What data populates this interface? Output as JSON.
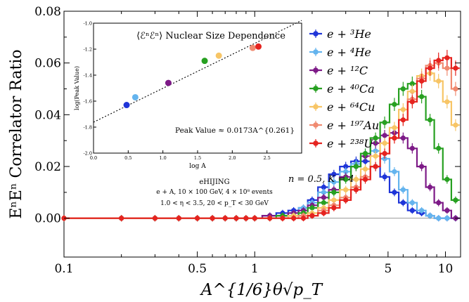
{
  "chart_data": [
    {
      "type": "line",
      "ylabel": "EⁿEⁿ Correlator Ratio",
      "xlabel": "A^{1/6}θ√p_T",
      "xscale": "log",
      "xlim": [
        0.1,
        12
      ],
      "ylim": [
        -0.015,
        0.08
      ],
      "x_ticks": [
        0.1,
        0.5,
        1,
        5,
        10
      ],
      "x_tick_labels": [
        "0.1",
        "0.5",
        "1",
        "5",
        "10"
      ],
      "y_ticks": [
        0.0,
        0.02,
        0.04,
        0.06,
        0.08
      ],
      "y_tick_labels": [
        "0.00",
        "0.02",
        "0.04",
        "0.06",
        "0.08"
      ],
      "grid": false,
      "legend_position": "top-right",
      "annotations": {
        "params": "n = 0.5,  K = 4",
        "generator": "eHIJING",
        "setup": "e + A,  10 × 100 GeV,  4 × 10⁸ events",
        "cuts": "1.0 < η < 3.5,  20 < p_T < 30 GeV"
      },
      "x": [
        0.1,
        0.2,
        0.3,
        0.4,
        0.5,
        0.6,
        0.7,
        0.8,
        0.9,
        1.0,
        1.2,
        1.4,
        1.6,
        1.8,
        2.0,
        2.3,
        2.6,
        3.0,
        3.4,
        3.8,
        4.3,
        4.8,
        5.4,
        6.0,
        6.7,
        7.5,
        8.3,
        9.2,
        10.2,
        11.3
      ],
      "series": [
        {
          "name": "e + ³He",
          "color": "#1f35d8",
          "values": [
            0,
            0,
            0,
            0,
            0,
            0,
            0,
            0,
            0,
            0,
            0.001,
            0.002,
            0.003,
            0.004,
            0.007,
            0.012,
            0.017,
            0.02,
            0.022,
            0.022,
            0.02,
            0.016,
            0.01,
            0.006,
            0.003,
            0.002,
            0.001,
            0,
            0,
            0
          ]
        },
        {
          "name": "e + ⁴He",
          "color": "#64b4ee",
          "values": [
            0,
            0,
            0,
            0,
            0,
            0,
            0,
            0,
            0,
            0,
            0.001,
            0.001,
            0.002,
            0.004,
            0.006,
            0.01,
            0.014,
            0.018,
            0.021,
            0.025,
            0.026,
            0.023,
            0.018,
            0.011,
            0.006,
            0.003,
            0.001,
            0,
            0,
            0
          ]
        },
        {
          "name": "e + ¹²C",
          "color": "#7d1a87",
          "values": [
            0,
            0,
            0,
            0,
            0,
            0,
            0,
            0,
            0,
            0,
            0.001,
            0.001,
            0.002,
            0.003,
            0.005,
            0.008,
            0.011,
            0.016,
            0.02,
            0.024,
            0.029,
            0.032,
            0.033,
            0.031,
            0.027,
            0.02,
            0.012,
            0.006,
            0.003,
            0
          ]
        },
        {
          "name": "e + ⁴⁰Ca",
          "color": "#27a021",
          "values": [
            0,
            0,
            0,
            0,
            0,
            0,
            0,
            0,
            0,
            0,
            0,
            0.001,
            0.001,
            0.002,
            0.004,
            0.006,
            0.01,
            0.015,
            0.02,
            0.025,
            0.031,
            0.037,
            0.044,
            0.05,
            0.052,
            0.047,
            0.038,
            0.027,
            0.015,
            0.007
          ]
        },
        {
          "name": "e + ⁶⁴Cu",
          "color": "#f7c566",
          "values": [
            0,
            0,
            0,
            0,
            0,
            0,
            0,
            0,
            0,
            0,
            0,
            0,
            0.001,
            0.001,
            0.002,
            0.004,
            0.007,
            0.011,
            0.015,
            0.019,
            0.024,
            0.029,
            0.035,
            0.042,
            0.049,
            0.055,
            0.056,
            0.053,
            0.045,
            0.036
          ]
        },
        {
          "name": "e + ¹⁹⁷Au",
          "color": "#f08a70",
          "values": [
            0,
            0,
            0,
            0,
            0,
            0,
            0,
            0,
            0,
            0,
            0,
            0,
            0,
            0.001,
            0.001,
            0.003,
            0.005,
            0.008,
            0.012,
            0.016,
            0.02,
            0.025,
            0.031,
            0.038,
            0.046,
            0.054,
            0.059,
            0.06,
            0.058,
            0.05
          ]
        },
        {
          "name": "e + ²³⁸U",
          "color": "#e5231f",
          "values": [
            0,
            0,
            0,
            0,
            0,
            0,
            0,
            0,
            0,
            0,
            0,
            0,
            0,
            0,
            0.001,
            0.002,
            0.004,
            0.007,
            0.011,
            0.015,
            0.02,
            0.025,
            0.031,
            0.038,
            0.045,
            0.053,
            0.058,
            0.061,
            0.062,
            0.058
          ]
        }
      ]
    },
    {
      "type": "scatter",
      "title": "⟨ℰⁿℰⁿ⟩ Nuclear Size Dependence",
      "xlabel": "log A",
      "ylabel": "log(Peak Value)",
      "xlim": [
        0.0,
        3.0
      ],
      "ylim": [
        -2.0,
        -1.0
      ],
      "x_ticks": [
        0.0,
        0.5,
        1.0,
        1.5,
        2.0,
        2.5
      ],
      "x_tick_labels": [
        "0.0",
        "0.5",
        "1.0",
        "1.5",
        "2.0",
        "2.5"
      ],
      "y_ticks": [
        -2.0,
        -1.8,
        -1.6,
        -1.4,
        -1.2,
        -1.0
      ],
      "y_tick_labels": [
        "-2.0",
        "-1.8",
        "-1.6",
        "-1.4",
        "-1.2",
        "-1.0"
      ],
      "fit_label": "Peak Value ≈ 0.0173A^{0.261}",
      "fit": {
        "intercept": -1.762,
        "slope": 0.261
      },
      "points": [
        {
          "x": 0.477,
          "y": -1.63,
          "color": "#1f35d8"
        },
        {
          "x": 0.602,
          "y": -1.57,
          "color": "#64b4ee"
        },
        {
          "x": 1.079,
          "y": -1.46,
          "color": "#7d1a87"
        },
        {
          "x": 1.602,
          "y": -1.29,
          "color": "#27a021"
        },
        {
          "x": 1.806,
          "y": -1.25,
          "color": "#f7c566"
        },
        {
          "x": 2.294,
          "y": -1.19,
          "color": "#f08a70"
        },
        {
          "x": 2.377,
          "y": -1.18,
          "color": "#e5231f"
        }
      ]
    }
  ]
}
